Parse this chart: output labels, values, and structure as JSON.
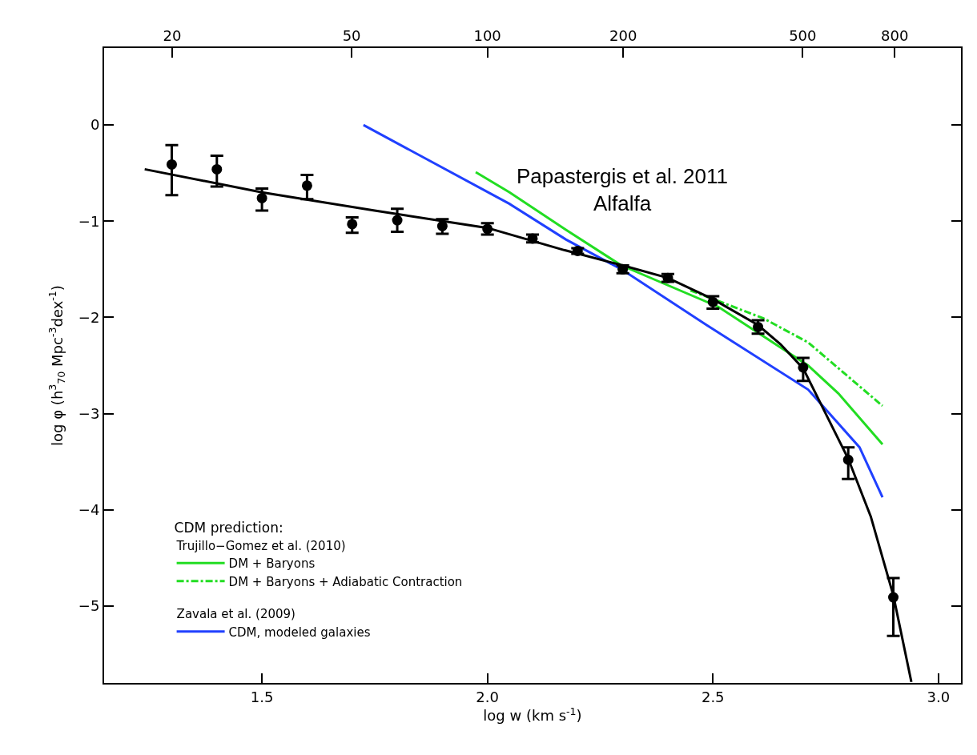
{
  "chart_data": {
    "type": "line",
    "xlabel": "log w (km s$^{-1}$)",
    "ylabel": "log φ (h$^{3}$$_{70}$ Mpc$^{-3}$dex$^{-1}$)",
    "legend_title": "CDM prediction:",
    "annotations": [
      "Papastergis et al. 2011\nAlfalfa",
      "Trujillo−Gomez et al. (2010)",
      "Zavala et al. (2009)"
    ],
    "xlim": [
      1.15,
      3.05
    ],
    "xticks": [
      {
        "value": 1.5,
        "label": "1.5"
      },
      {
        "value": 2.0,
        "label": "2.0"
      },
      {
        "value": 2.5,
        "label": "2.5"
      },
      {
        "value": 3.0,
        "label": "3.0"
      }
    ],
    "x2lim": [
      14.13,
      1122
    ],
    "x2ticks": [
      20,
      50,
      100,
      200,
      500,
      800
    ],
    "log": "x2",
    "ylim": [
      -5.8,
      0.8
    ],
    "yticks": [
      0,
      -1,
      -2,
      -3,
      -4,
      -5
    ],
    "legend": "bottom left",
    "series": [
      {
        "type": "scatter",
        "marker": "circle",
        "color": "#000000",
        "x": [
          1.3,
          1.4,
          1.5,
          1.6,
          1.7,
          1.8,
          1.9,
          2.0,
          2.1,
          2.2,
          2.3,
          2.4,
          2.5,
          2.6,
          2.7,
          2.8,
          2.9
        ],
        "values": [
          -0.41,
          -0.46,
          -0.76,
          -0.63,
          -1.03,
          -0.99,
          -1.05,
          -1.08,
          -1.18,
          -1.31,
          -1.5,
          -1.59,
          -1.84,
          -2.1,
          -2.52,
          -3.48,
          -4.91
        ],
        "errors": [
          [
            -0.73,
            -0.21
          ],
          [
            -0.64,
            -0.32
          ],
          [
            -0.89,
            -0.66
          ],
          [
            -0.77,
            -0.52
          ],
          [
            -1.12,
            -0.96
          ],
          [
            -1.11,
            -0.87
          ],
          [
            -1.13,
            -0.98
          ],
          [
            -1.14,
            -1.02
          ],
          [
            -1.22,
            -1.14
          ],
          [
            -1.34,
            -1.28
          ],
          [
            -1.54,
            -1.46
          ],
          [
            -1.63,
            -1.55
          ],
          [
            -1.91,
            -1.78
          ],
          [
            -2.17,
            -2.03
          ],
          [
            -2.66,
            -2.42
          ],
          [
            -3.68,
            -3.35
          ],
          [
            -5.31,
            -4.71
          ]
        ]
      },
      {
        "color": "#000000",
        "line_style": "solid",
        "x": [
          1.24,
          1.5,
          1.75,
          2.0,
          2.17,
          2.3,
          2.4,
          2.5,
          2.6,
          2.65,
          2.7,
          2.75,
          2.8,
          2.85,
          2.9,
          2.94
        ],
        "values": [
          -0.46,
          -0.7,
          -0.89,
          -1.07,
          -1.3,
          -1.46,
          -1.59,
          -1.81,
          -2.08,
          -2.28,
          -2.53,
          -3.0,
          -3.47,
          -4.07,
          -4.89,
          -5.79
        ]
      },
      {
        "name": "DM + Baryons",
        "color": "#22dd22",
        "line_style": "solid",
        "x": [
          1.974,
          2.049,
          2.174,
          2.297,
          2.512,
          2.711,
          2.778,
          2.876
        ],
        "values": [
          -0.49,
          -0.7,
          -1.09,
          -1.46,
          -1.89,
          -2.5,
          -2.79,
          -3.32
        ]
      },
      {
        "name": "DM + Baryons + Adiabatic Contraction",
        "color": "#22dd22",
        "line_style": "dashdot",
        "x": [
          2.45,
          2.512,
          2.612,
          2.711,
          2.876
        ],
        "values": [
          -1.72,
          -1.83,
          -2.01,
          -2.26,
          -2.92
        ]
      },
      {
        "name": "CDM, modeled galaxies",
        "color": "#2040ff",
        "line_style": "solid",
        "x": [
          1.725,
          2.049,
          2.174,
          2.297,
          2.486,
          2.711,
          2.825,
          2.876
        ],
        "values": [
          0.0,
          -0.82,
          -1.19,
          -1.5,
          -2.08,
          -2.75,
          -3.35,
          -3.87
        ]
      }
    ]
  }
}
